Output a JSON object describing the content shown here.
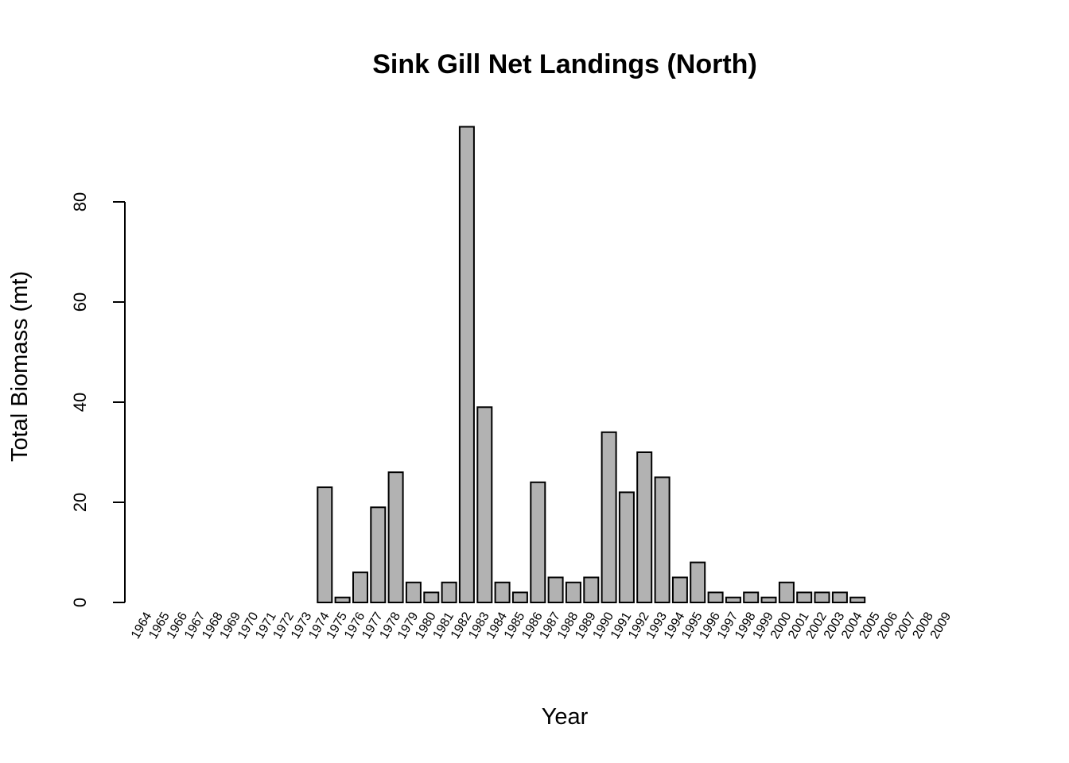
{
  "chart_data": {
    "type": "bar",
    "title": "Sink Gill Net Landings (North)",
    "xlabel": "Year",
    "ylabel": "Total Biomass (mt)",
    "ylim": [
      0,
      95
    ],
    "yticks": [
      0,
      20,
      40,
      60,
      80
    ],
    "grid": false,
    "legend": "none",
    "bar_color": "#b2b2b2",
    "categories": [
      "1964",
      "1965",
      "1966",
      "1967",
      "1968",
      "1969",
      "1970",
      "1971",
      "1972",
      "1973",
      "1974",
      "1975",
      "1976",
      "1977",
      "1978",
      "1979",
      "1980",
      "1981",
      "1982",
      "1983",
      "1984",
      "1985",
      "1986",
      "1987",
      "1988",
      "1989",
      "1990",
      "1991",
      "1992",
      "1993",
      "1994",
      "1995",
      "1996",
      "1997",
      "1998",
      "1999",
      "2000",
      "2001",
      "2002",
      "2003",
      "2004",
      "2005",
      "2006",
      "2007",
      "2008",
      "2009"
    ],
    "values": [
      0,
      0,
      0,
      0,
      0,
      0,
      0,
      0,
      0,
      0,
      23,
      1,
      6,
      19,
      26,
      4,
      2,
      4,
      95,
      39,
      4,
      2,
      24,
      5,
      4,
      5,
      34,
      22,
      30,
      25,
      5,
      8,
      2,
      1,
      2,
      1,
      4,
      2,
      2,
      2,
      1,
      0,
      0,
      0,
      0,
      0
    ]
  }
}
